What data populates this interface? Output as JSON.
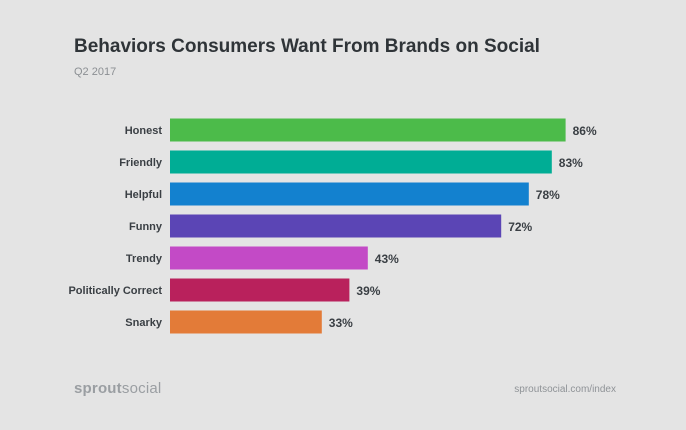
{
  "header": {
    "title": "Behaviors Consumers Want From Brands on Social",
    "subtitle": "Q2 2017"
  },
  "footer": {
    "brand_bold": "sprout",
    "brand_light": "social",
    "url": "sproutsocial.com/index"
  },
  "chart_data": {
    "type": "bar",
    "orientation": "horizontal",
    "title": "Behaviors Consumers Want From Brands on Social",
    "subtitle": "Q2 2017",
    "categories": [
      "Honest",
      "Friendly",
      "Helpful",
      "Funny",
      "Trendy",
      "Politically Correct",
      "Snarky"
    ],
    "values": [
      86,
      83,
      78,
      72,
      43,
      39,
      33
    ],
    "value_labels": [
      "86%",
      "83%",
      "78%",
      "72%",
      "43%",
      "39%",
      "33%"
    ],
    "colors": [
      "#4cbb4a",
      "#00ad95",
      "#1381cf",
      "#5b45b5",
      "#c34ac6",
      "#b9215c",
      "#e37b38"
    ],
    "xlim": [
      0,
      100
    ],
    "xlabel": "",
    "ylabel": "",
    "grid": false,
    "legend": "none"
  }
}
